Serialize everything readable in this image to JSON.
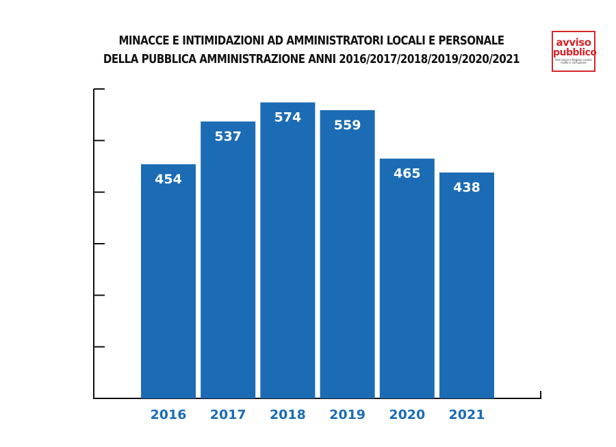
{
  "chart_data": {
    "type": "bar",
    "title": [
      "MINACCE E INTIMIDAZIONI AD AMMINISTRATORI LOCALI E PERSONALE",
      "DELLA PUBBLICA AMMINISTRAZIONE ANNI 2016/2017/2018/2019/2020/2021"
    ],
    "categories": [
      "2016",
      "2017",
      "2018",
      "2019",
      "2020",
      "2021"
    ],
    "values": [
      454,
      537,
      574,
      559,
      465,
      438
    ],
    "xlabel": "",
    "ylabel": "",
    "ylim": [
      0,
      600
    ],
    "yticks": [
      0,
      100,
      200,
      300,
      400,
      500,
      600
    ],
    "ytick_labels_shown": false,
    "grid": false,
    "bar_color": "#1b6cb4",
    "label_color": "#ffffff",
    "category_label_color": "#1b6cb4"
  },
  "logo": {
    "line1": "avviso",
    "line2": "pubblico",
    "tagline": "Enti locali e Regioni contro mafie e corruzione"
  }
}
